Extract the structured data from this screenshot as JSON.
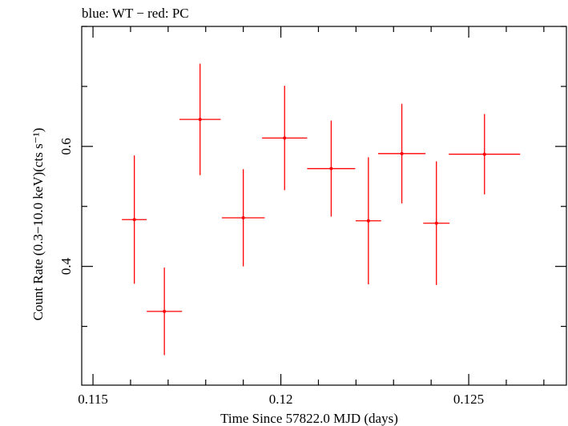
{
  "chart_data": {
    "type": "scatter",
    "title": "blue: WT − red: PC",
    "xlabel": "Time Since 57822.0 MJD (days)",
    "ylabel": "Count Rate (0.3−10.0 keV)(cts s⁻¹)",
    "xlim": [
      0.1147,
      0.1276
    ],
    "ylim": [
      0.202,
      0.8
    ],
    "x_ticks": [
      0.115,
      0.12,
      0.125
    ],
    "x_tick_labels": [
      "0.115",
      "0.12",
      "0.125"
    ],
    "y_ticks": [
      0.4,
      0.6
    ],
    "y_tick_labels": [
      "0.4",
      "0.6"
    ],
    "grid": false,
    "series": [
      {
        "name": "PC",
        "color": "#ff0000",
        "points": [
          {
            "x": 0.1161,
            "y": 0.478,
            "xerr": 0.00033,
            "yerr_low": 0.107,
            "yerr_high": 0.107
          },
          {
            "x": 0.1169,
            "y": 0.325,
            "xerr": 0.00047,
            "yerr_low": 0.073,
            "yerr_high": 0.073
          },
          {
            "x": 0.11785,
            "y": 0.645,
            "xerr": 0.00055,
            "yerr_low": 0.093,
            "yerr_high": 0.093
          },
          {
            "x": 0.119,
            "y": 0.481,
            "xerr": 0.00057,
            "yerr_low": 0.081,
            "yerr_high": 0.081
          },
          {
            "x": 0.1201,
            "y": 0.614,
            "xerr": 0.0006,
            "yerr_low": 0.087,
            "yerr_high": 0.087
          },
          {
            "x": 0.12134,
            "y": 0.563,
            "xerr": 0.00064,
            "yerr_low": 0.08,
            "yerr_high": 0.08
          },
          {
            "x": 0.12233,
            "y": 0.476,
            "xerr": 0.00034,
            "yerr_low": 0.106,
            "yerr_high": 0.106
          },
          {
            "x": 0.12322,
            "y": 0.588,
            "xerr": 0.00063,
            "yerr_low": 0.083,
            "yerr_high": 0.083
          },
          {
            "x": 0.12414,
            "y": 0.472,
            "xerr": 0.00035,
            "yerr_low": 0.103,
            "yerr_high": 0.103
          },
          {
            "x": 0.12542,
            "y": 0.587,
            "xerr": 0.00095,
            "yerr_low": 0.067,
            "yerr_high": 0.067
          }
        ]
      }
    ]
  }
}
